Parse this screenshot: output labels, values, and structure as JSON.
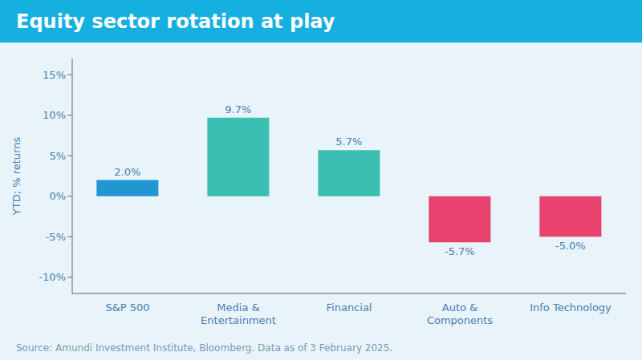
{
  "chart_data": {
    "type": "bar",
    "title": "Equity sector rotation at play",
    "categories": [
      "S&P 500",
      "Media &\nEntertainment",
      "Financial",
      "Auto &\nComponents",
      "Info Technology"
    ],
    "values": [
      2.0,
      9.7,
      5.7,
      -5.7,
      -5.0
    ],
    "value_labels": [
      "2.0%",
      "9.7%",
      "5.7%",
      "-5.7%",
      "-5.0%"
    ],
    "data_labels": true,
    "colors": [
      "#2196d3",
      "#3bbfb2",
      "#3bbfb2",
      "#e8416e",
      "#e8416e"
    ],
    "ylabel": "YTD; % returns",
    "ylim": [
      -12,
      17
    ],
    "yticks": [
      {
        "value": -10,
        "label": "-10%"
      },
      {
        "value": -5,
        "label": "-5%"
      },
      {
        "value": 0,
        "label": "0%"
      },
      {
        "value": 5,
        "label": "5%"
      },
      {
        "value": 10,
        "label": "10%"
      },
      {
        "value": 15,
        "label": "15%"
      }
    ],
    "grid": false,
    "annotations": [
      "Source: Amundi Investment Institute, Bloomberg. Data as of 3 February 2025."
    ]
  }
}
